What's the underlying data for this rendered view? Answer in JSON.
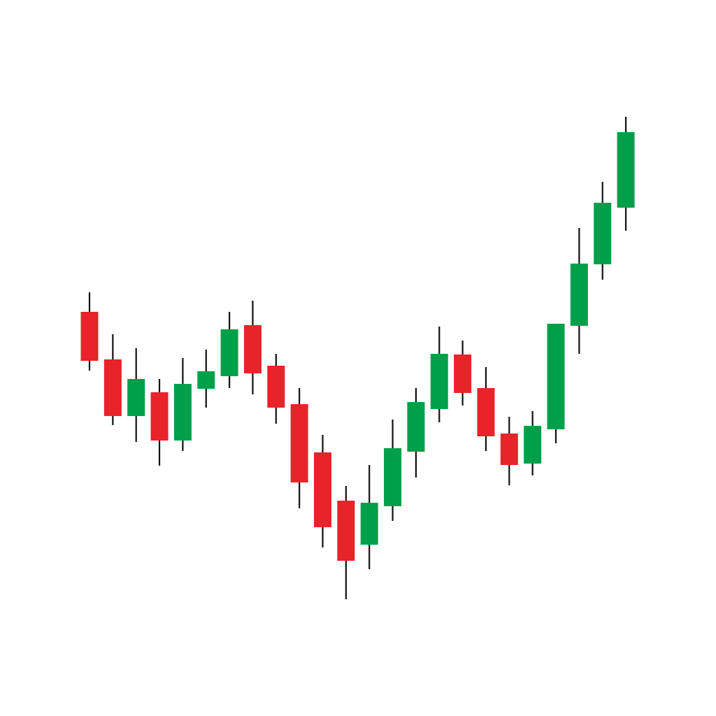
{
  "chart_data": {
    "type": "candlestick",
    "title": "",
    "xlabel": "",
    "ylabel": "",
    "ylim": [
      0,
      100
    ],
    "grid": false,
    "axes_visible": false,
    "colors": {
      "up": "#00a04a",
      "down": "#e8232a",
      "wick": "#111111",
      "background": "#ffffff"
    },
    "candles": [
      {
        "open": 55.4,
        "high": 58.2,
        "low": 47.0,
        "close": 48.4
      },
      {
        "open": 48.6,
        "high": 52.2,
        "low": 39.2,
        "close": 40.5
      },
      {
        "open": 40.5,
        "high": 50.2,
        "low": 36.8,
        "close": 45.8
      },
      {
        "open": 43.9,
        "high": 45.8,
        "low": 33.4,
        "close": 37.0
      },
      {
        "open": 37.0,
        "high": 48.8,
        "low": 35.5,
        "close": 45.1
      },
      {
        "open": 44.4,
        "high": 50.0,
        "low": 41.7,
        "close": 46.9
      },
      {
        "open": 46.2,
        "high": 55.4,
        "low": 44.5,
        "close": 52.9
      },
      {
        "open": 53.5,
        "high": 57.0,
        "low": 43.6,
        "close": 46.6
      },
      {
        "open": 47.7,
        "high": 49.4,
        "low": 39.4,
        "close": 41.7
      },
      {
        "open": 42.2,
        "high": 44.5,
        "low": 27.3,
        "close": 31.0
      },
      {
        "open": 35.3,
        "high": 37.8,
        "low": 21.7,
        "close": 24.6
      },
      {
        "open": 28.4,
        "high": 30.5,
        "low": 14.3,
        "close": 19.8
      },
      {
        "open": 22.1,
        "high": 33.5,
        "low": 18.6,
        "close": 28.1
      },
      {
        "open": 27.6,
        "high": 40.0,
        "low": 25.5,
        "close": 35.9
      },
      {
        "open": 35.4,
        "high": 44.5,
        "low": 31.7,
        "close": 42.5
      },
      {
        "open": 41.5,
        "high": 53.3,
        "low": 39.6,
        "close": 49.4
      },
      {
        "open": 49.3,
        "high": 51.3,
        "low": 42.0,
        "close": 43.8
      },
      {
        "open": 44.5,
        "high": 47.5,
        "low": 35.5,
        "close": 37.6
      },
      {
        "open": 38.0,
        "high": 40.4,
        "low": 30.6,
        "close": 33.5
      },
      {
        "open": 33.7,
        "high": 41.2,
        "low": 32.0,
        "close": 39.1
      },
      {
        "open": 38.6,
        "high": 53.7,
        "low": 36.6,
        "close": 53.7
      },
      {
        "open": 53.4,
        "high": 67.4,
        "low": 49.4,
        "close": 62.3
      },
      {
        "open": 62.2,
        "high": 74.0,
        "low": 60.0,
        "close": 71.0
      },
      {
        "open": 70.3,
        "high": 83.3,
        "low": 67.0,
        "close": 81.1
      }
    ]
  }
}
